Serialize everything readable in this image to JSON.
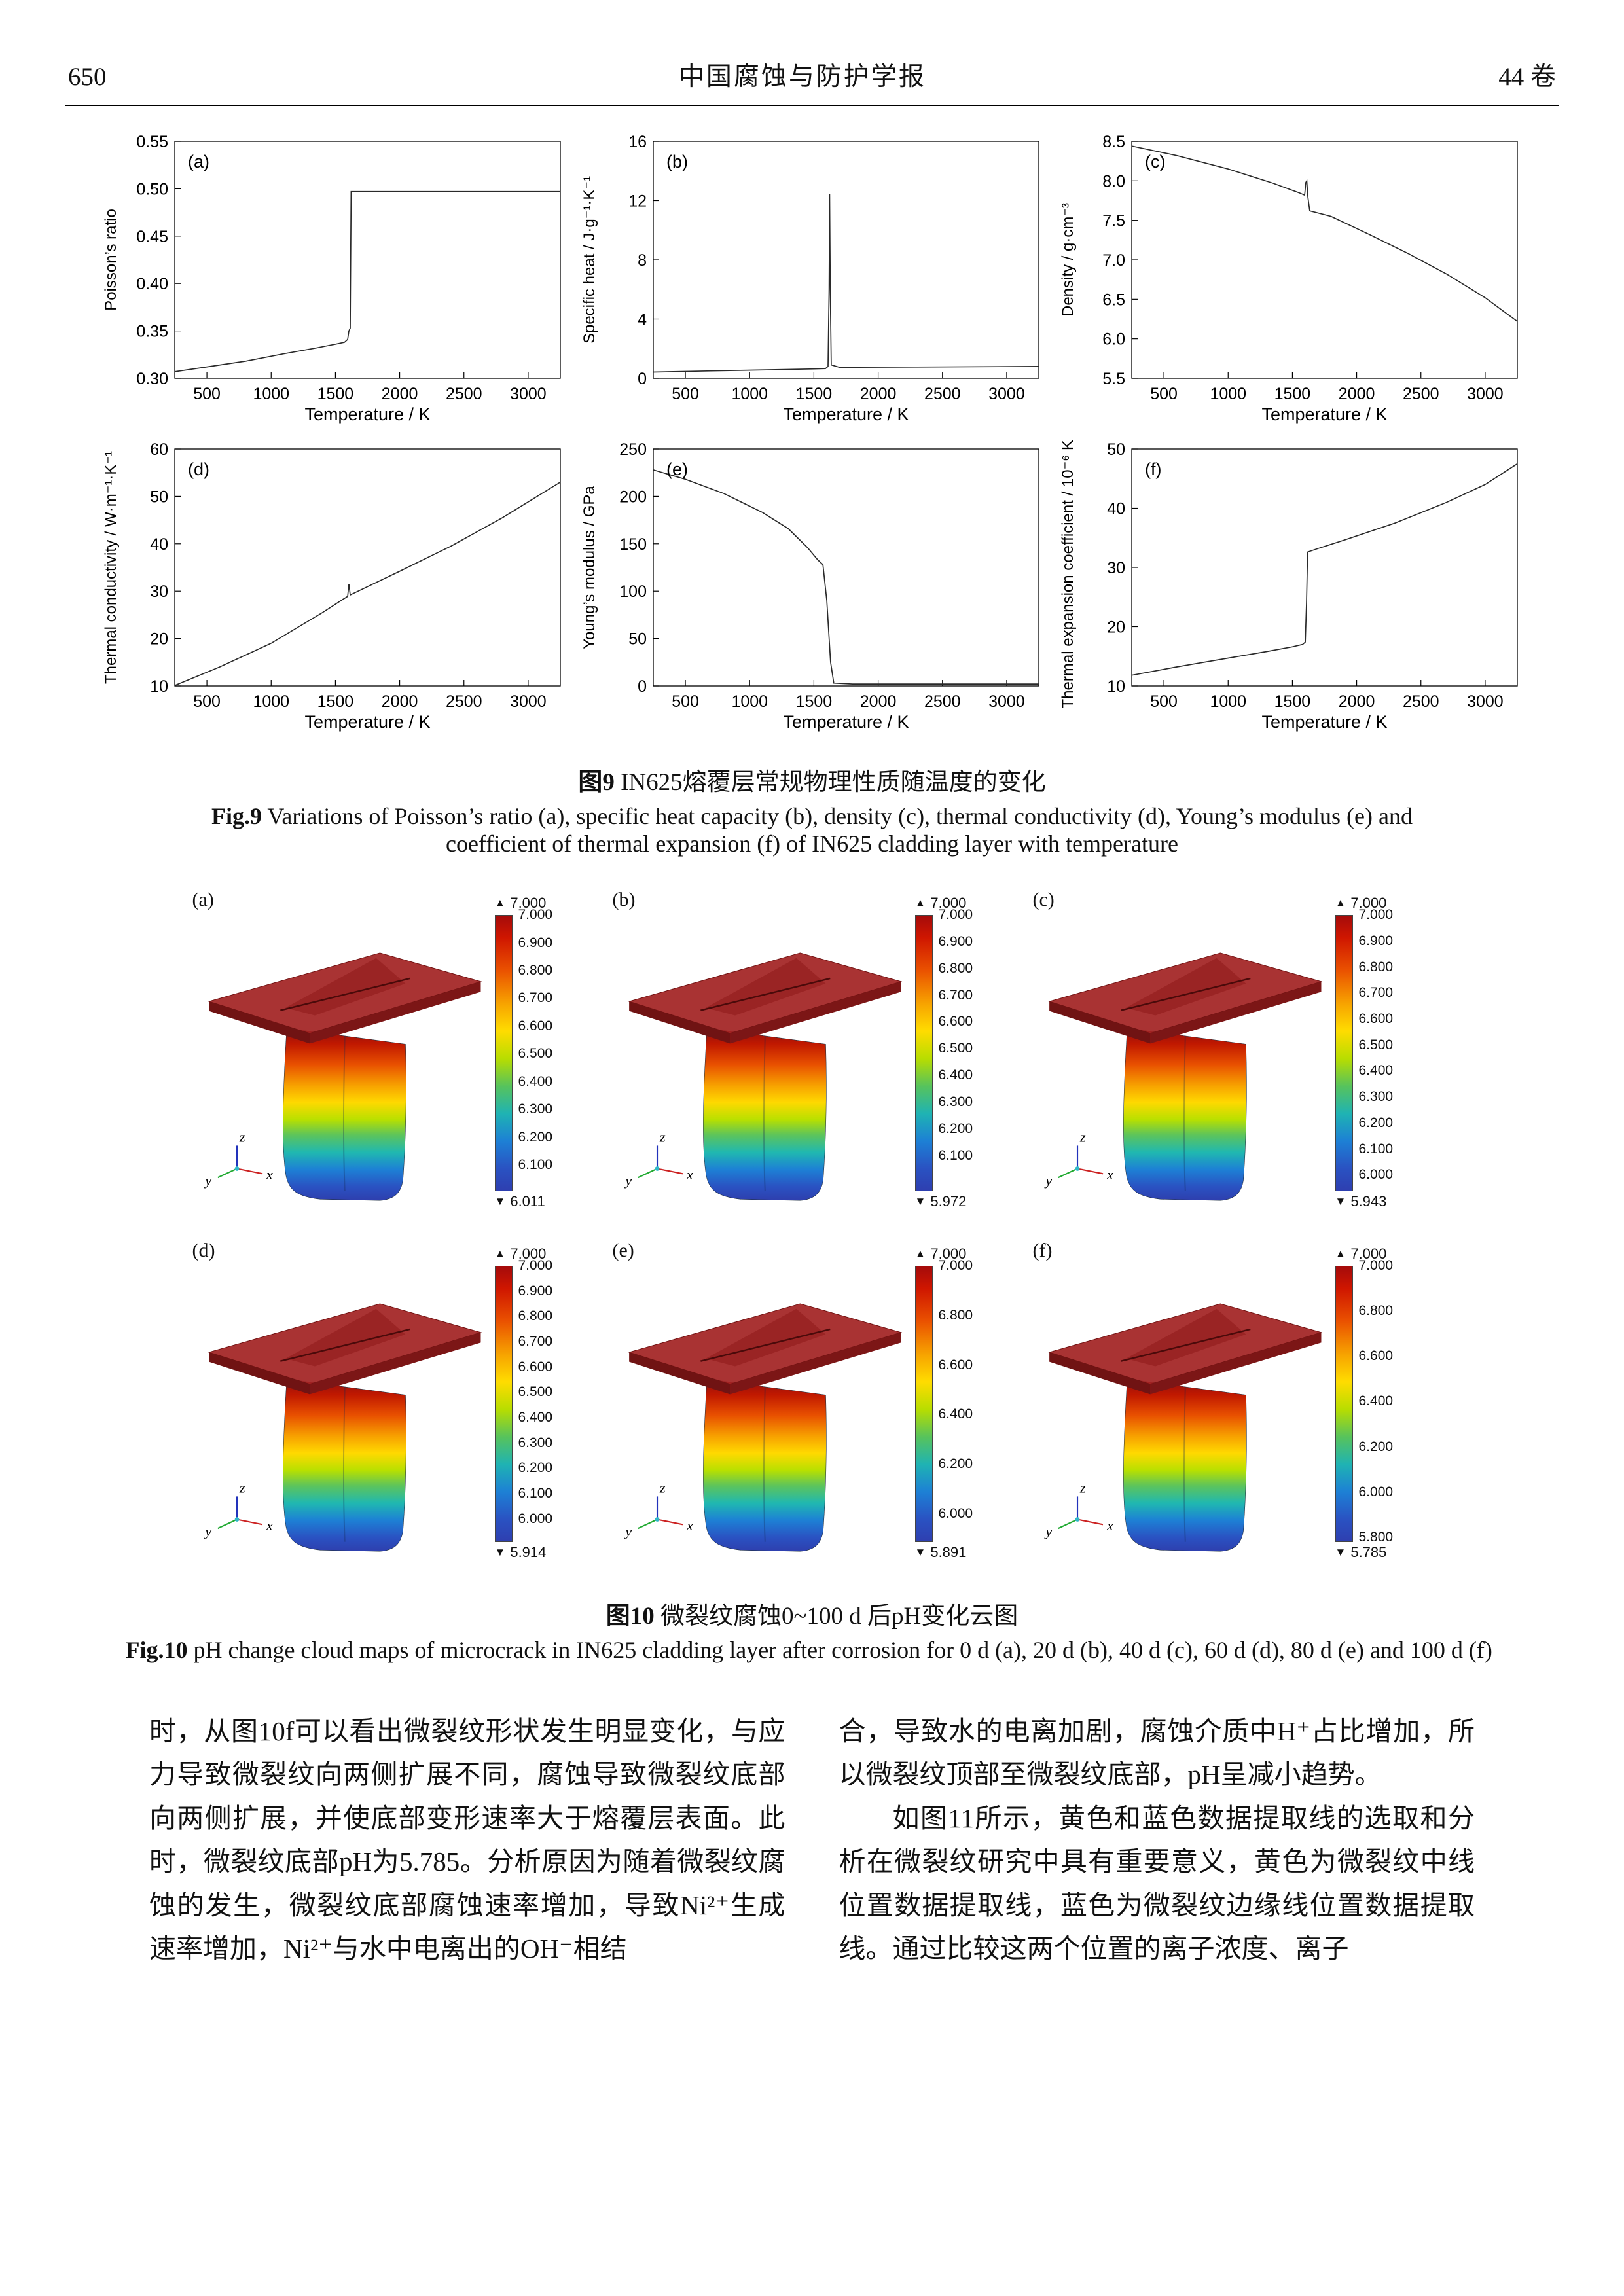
{
  "header": {
    "page_number": "650",
    "journal_title": "中国腐蚀与防护学报",
    "volume": "44 卷"
  },
  "fig9": {
    "cap_zh_label": "图9",
    "cap_zh_text": " IN625熔覆层常规物理性质随温度的变化",
    "cap_en_label": "Fig.9",
    "cap_en_text": " Variations of Poisson’s ratio (a), specific heat capacity (b), density (c), thermal conductivity (d), Young’s modulus (e) and coefficient of thermal expansion (f) of IN625 cladding layer with temperature"
  },
  "chart_data": [
    {
      "type": "line",
      "label": "(a)",
      "title": "",
      "xlabel": "Temperature / K",
      "ylabel": "Poisson’s ratio",
      "xlim": [
        250,
        3250
      ],
      "ylim": [
        0.3,
        0.55
      ],
      "xticks": [
        500,
        1000,
        1500,
        2000,
        2500,
        3000
      ],
      "yticks": [
        "0.30",
        "0.35",
        "0.40",
        "0.45",
        "0.50",
        "0.55"
      ],
      "grid": false,
      "legend": "none",
      "points": [
        [
          250,
          0.307
        ],
        [
          500,
          0.312
        ],
        [
          800,
          0.318
        ],
        [
          1100,
          0.326
        ],
        [
          1350,
          0.332
        ],
        [
          1500,
          0.336
        ],
        [
          1570,
          0.338
        ],
        [
          1595,
          0.341
        ],
        [
          1605,
          0.35
        ],
        [
          1615,
          0.353
        ],
        [
          1622,
          0.497
        ],
        [
          1800,
          0.497
        ],
        [
          2400,
          0.497
        ],
        [
          3250,
          0.497
        ]
      ]
    },
    {
      "type": "line",
      "label": "(b)",
      "title": "",
      "xlabel": "Temperature / K",
      "ylabel": "Specific heat / J·g⁻¹·K⁻¹",
      "xlim": [
        250,
        3250
      ],
      "ylim": [
        0,
        16
      ],
      "xticks": [
        500,
        1000,
        1500,
        2000,
        2500,
        3000
      ],
      "yticks": [
        "0",
        "4",
        "8",
        "12",
        "16"
      ],
      "grid": false,
      "legend": "none",
      "points": [
        [
          250,
          0.42
        ],
        [
          700,
          0.5
        ],
        [
          1200,
          0.58
        ],
        [
          1500,
          0.63
        ],
        [
          1590,
          0.66
        ],
        [
          1610,
          0.8
        ],
        [
          1618,
          6.0
        ],
        [
          1622,
          12.45
        ],
        [
          1627,
          6.0
        ],
        [
          1635,
          0.9
        ],
        [
          1700,
          0.74
        ],
        [
          2300,
          0.76
        ],
        [
          3250,
          0.8
        ]
      ]
    },
    {
      "type": "line",
      "label": "(c)",
      "title": "",
      "xlabel": "Temperature / K",
      "ylabel": "Density / g·cm⁻³",
      "xlim": [
        250,
        3250
      ],
      "ylim": [
        5.5,
        8.5
      ],
      "xticks": [
        500,
        1000,
        1500,
        2000,
        2500,
        3000
      ],
      "yticks": [
        "5.5",
        "6.0",
        "6.5",
        "7.0",
        "7.5",
        "8.0",
        "8.5"
      ],
      "grid": false,
      "legend": "none",
      "points": [
        [
          250,
          8.44
        ],
        [
          600,
          8.32
        ],
        [
          1000,
          8.15
        ],
        [
          1350,
          7.97
        ],
        [
          1550,
          7.85
        ],
        [
          1595,
          7.82
        ],
        [
          1605,
          7.98
        ],
        [
          1612,
          8.0
        ],
        [
          1620,
          7.8
        ],
        [
          1635,
          7.62
        ],
        [
          1800,
          7.55
        ],
        [
          2100,
          7.32
        ],
        [
          2400,
          7.08
        ],
        [
          2700,
          6.82
        ],
        [
          3000,
          6.52
        ],
        [
          3250,
          6.22
        ]
      ]
    },
    {
      "type": "line",
      "label": "(d)",
      "title": "",
      "xlabel": "Temperature / K",
      "ylabel": "Thermal conductivity / W·m⁻¹·K⁻¹",
      "xlim": [
        250,
        3250
      ],
      "ylim": [
        10,
        60
      ],
      "xticks": [
        500,
        1000,
        1500,
        2000,
        2500,
        3000
      ],
      "yticks": [
        "10",
        "20",
        "30",
        "40",
        "50",
        "60"
      ],
      "grid": false,
      "legend": "none",
      "points": [
        [
          250,
          10.1
        ],
        [
          600,
          14.0
        ],
        [
          1000,
          19.0
        ],
        [
          1400,
          25.5
        ],
        [
          1560,
          28.3
        ],
        [
          1595,
          28.9
        ],
        [
          1605,
          31.5
        ],
        [
          1615,
          29.2
        ],
        [
          1700,
          30.3
        ],
        [
          2000,
          34.2
        ],
        [
          2400,
          39.5
        ],
        [
          2800,
          45.5
        ],
        [
          3100,
          50.5
        ],
        [
          3250,
          53.0
        ]
      ]
    },
    {
      "type": "line",
      "label": "(e)",
      "title": "",
      "xlabel": "Temperature / K",
      "ylabel": "Young’s modulus / GPa",
      "xlim": [
        250,
        3250
      ],
      "ylim": [
        0,
        250
      ],
      "xticks": [
        500,
        1000,
        1500,
        2000,
        2500,
        3000
      ],
      "yticks": [
        "0",
        "50",
        "100",
        "150",
        "200",
        "250"
      ],
      "grid": false,
      "legend": "none",
      "points": [
        [
          250,
          228
        ],
        [
          500,
          218
        ],
        [
          800,
          203
        ],
        [
          1100,
          183
        ],
        [
          1300,
          166
        ],
        [
          1450,
          146
        ],
        [
          1530,
          133
        ],
        [
          1570,
          128
        ],
        [
          1600,
          90
        ],
        [
          1630,
          25
        ],
        [
          1655,
          3
        ],
        [
          1800,
          2
        ],
        [
          2500,
          2
        ],
        [
          3250,
          2
        ]
      ]
    },
    {
      "type": "line",
      "label": "(f)",
      "title": "",
      "xlabel": "Temperature / K",
      "ylabel": "Thermal expansion coefficient / 10⁻⁶ K⁻¹",
      "xlim": [
        250,
        3250
      ],
      "ylim": [
        10,
        50
      ],
      "xticks": [
        500,
        1000,
        1500,
        2000,
        2500,
        3000
      ],
      "yticks": [
        "10",
        "20",
        "30",
        "40",
        "50"
      ],
      "grid": false,
      "legend": "none",
      "points": [
        [
          250,
          11.8
        ],
        [
          600,
          13.2
        ],
        [
          1000,
          14.7
        ],
        [
          1300,
          15.8
        ],
        [
          1500,
          16.6
        ],
        [
          1580,
          17.0
        ],
        [
          1600,
          17.4
        ],
        [
          1610,
          24.0
        ],
        [
          1618,
          32.6
        ],
        [
          1700,
          33.2
        ],
        [
          1900,
          34.6
        ],
        [
          2300,
          37.5
        ],
        [
          2700,
          41.0
        ],
        [
          3000,
          44.0
        ],
        [
          3250,
          47.5
        ]
      ]
    }
  ],
  "fig10": {
    "max_marker": "▲",
    "min_marker": "▼",
    "colorbar": {
      "top_color": "#a50b0b",
      "bottom_color": "#2e3fb0"
    },
    "axis_labels": {
      "x": "x",
      "y": "y",
      "z": "z"
    },
    "panels": [
      {
        "label": "(a)",
        "max": "7.000",
        "min": "6.011",
        "ticks": [
          "7.000",
          "6.900",
          "6.800",
          "6.700",
          "6.600",
          "6.500",
          "6.400",
          "6.300",
          "6.200",
          "6.100"
        ]
      },
      {
        "label": "(b)",
        "max": "7.000",
        "min": "5.972",
        "ticks": [
          "7.000",
          "6.900",
          "6.800",
          "6.700",
          "6.600",
          "6.500",
          "6.400",
          "6.300",
          "6.200",
          "6.100"
        ]
      },
      {
        "label": "(c)",
        "max": "7.000",
        "min": "5.943",
        "ticks": [
          "7.000",
          "6.900",
          "6.800",
          "6.700",
          "6.600",
          "6.500",
          "6.400",
          "6.300",
          "6.200",
          "6.100",
          "6.000"
        ]
      },
      {
        "label": "(d)",
        "max": "7.000",
        "min": "5.914",
        "ticks": [
          "7.000",
          "6.900",
          "6.800",
          "6.700",
          "6.600",
          "6.500",
          "6.400",
          "6.300",
          "6.200",
          "6.100",
          "6.000"
        ]
      },
      {
        "label": "(e)",
        "max": "7.000",
        "min": "5.891",
        "ticks": [
          "7.000",
          "6.800",
          "6.600",
          "6.400",
          "6.200",
          "6.000"
        ]
      },
      {
        "label": "(f)",
        "max": "7.000",
        "min": "5.785",
        "ticks": [
          "7.000",
          "6.800",
          "6.600",
          "6.400",
          "6.200",
          "6.000",
          "5.800"
        ]
      }
    ],
    "cap_zh_label": "图10",
    "cap_zh_text": " 微裂纹腐蚀0~100 d 后pH变化云图",
    "cap_en_label": "Fig.10",
    "cap_en_text": " pH change cloud maps of microcrack in IN625 cladding layer after corrosion for 0 d (a), 20 d (b), 40 d (c), 60 d (d), 80 d (e) and 100 d (f)"
  },
  "body": {
    "left_para": "时，从图10f可以看出微裂纹形状发生明显变化，与应力导致微裂纹向两侧扩展不同，腐蚀导致微裂纹底部向两侧扩展，并使底部变形速率大于熔覆层表面。此时，微裂纹底部pH为5.785。分析原因为随着微裂纹腐蚀的发生，微裂纹底部腐蚀速率增加，导致Ni²⁺生成速率增加，Ni²⁺与水中电离出的OH⁻相结",
    "right_para1": "合，导致水的电离加剧，腐蚀介质中H⁺占比增加，所以微裂纹顶部至微裂纹底部，pH呈减小趋势。",
    "right_para2": "如图11所示，黄色和蓝色数据提取线的选取和分析在微裂纹研究中具有重要意义，黄色为微裂纹中线位置数据提取线，蓝色为微裂纹边缘线位置数据提取线。通过比较这两个位置的离子浓度、离子"
  }
}
